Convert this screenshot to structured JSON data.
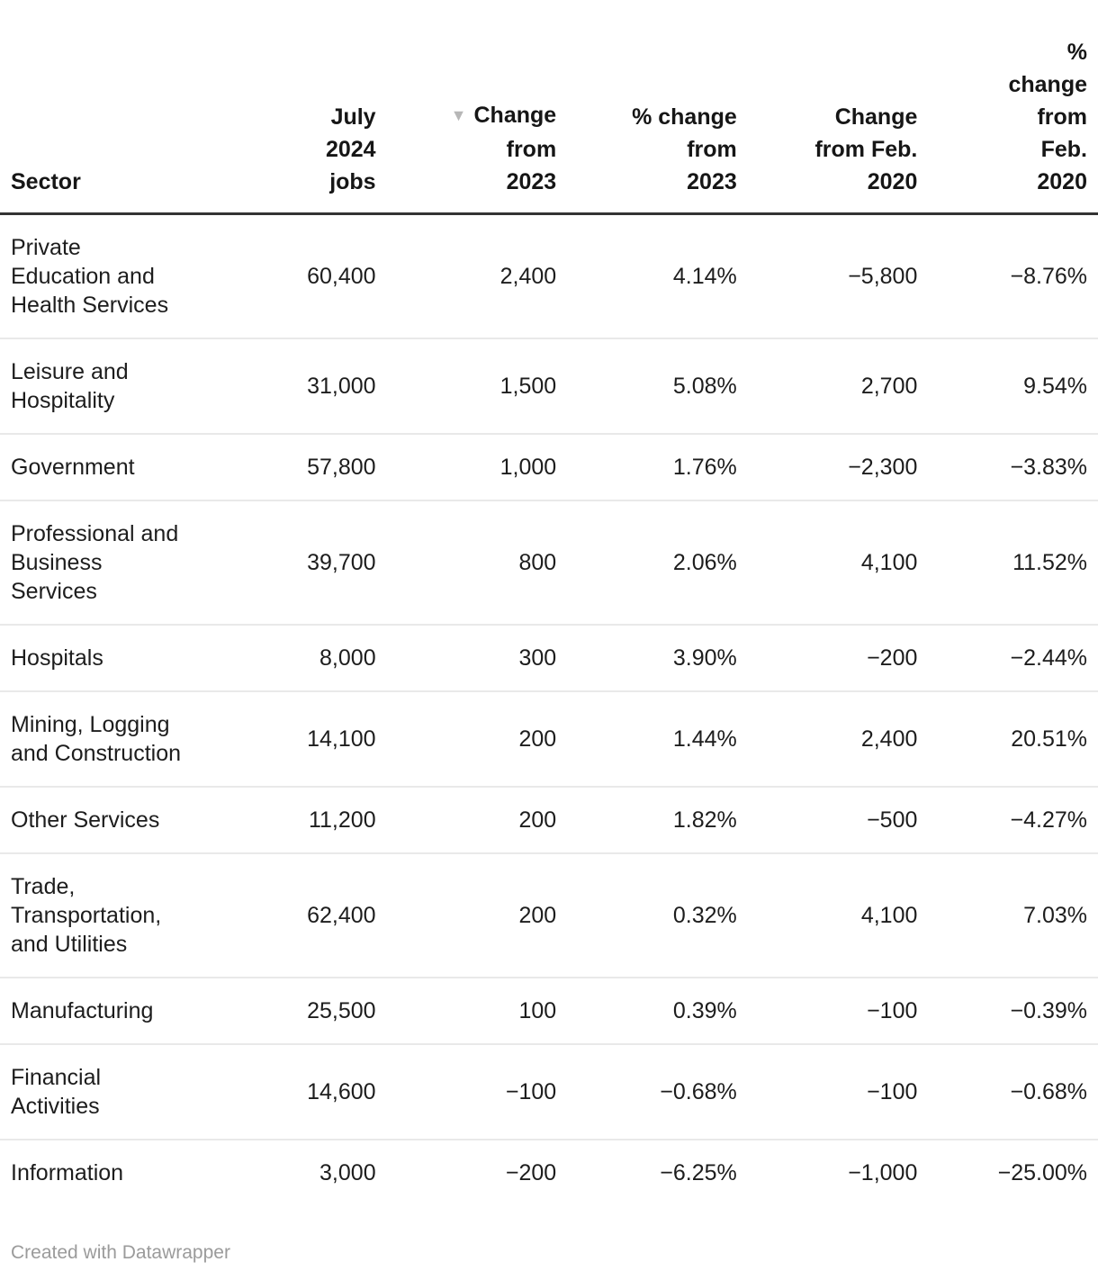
{
  "chart_data": {
    "type": "table",
    "title": "",
    "columns": [
      "Sector",
      "July 2024 jobs",
      "Change from 2023",
      "% change from 2023",
      "Change from Feb. 2020",
      "% change from Feb. 2020"
    ],
    "sort": {
      "column": "Change from 2023",
      "direction": "descending"
    },
    "rows": [
      {
        "sector": "Private Education and Health Services",
        "values": [
          "60,400",
          "2,400",
          "4.14%",
          "−5,800",
          "−8.76%"
        ]
      },
      {
        "sector": "Leisure and Hospitality",
        "values": [
          "31,000",
          "1,500",
          "5.08%",
          "2,700",
          "9.54%"
        ]
      },
      {
        "sector": "Government",
        "values": [
          "57,800",
          "1,000",
          "1.76%",
          "−2,300",
          "−3.83%"
        ]
      },
      {
        "sector": "Professional and Business Services",
        "values": [
          "39,700",
          "800",
          "2.06%",
          "4,100",
          "11.52%"
        ]
      },
      {
        "sector": "Hospitals",
        "values": [
          "8,000",
          "300",
          "3.90%",
          "−200",
          "−2.44%"
        ]
      },
      {
        "sector": "Mining, Logging and Construction",
        "values": [
          "14,100",
          "200",
          "1.44%",
          "2,400",
          "20.51%"
        ]
      },
      {
        "sector": "Other Services",
        "values": [
          "11,200",
          "200",
          "1.82%",
          "−500",
          "−4.27%"
        ]
      },
      {
        "sector": "Trade, Transportation, and Utilities",
        "values": [
          "62,400",
          "200",
          "0.32%",
          "4,100",
          "7.03%"
        ]
      },
      {
        "sector": "Manufacturing",
        "values": [
          "25,500",
          "100",
          "0.39%",
          "−100",
          "−0.39%"
        ]
      },
      {
        "sector": "Financial Activities",
        "values": [
          "14,600",
          "−100",
          "−0.68%",
          "−100",
          "−0.68%"
        ]
      },
      {
        "sector": "Information",
        "values": [
          "3,000",
          "−200",
          "−6.25%",
          "−1,000",
          "−25.00%"
        ]
      }
    ]
  },
  "header": {
    "column_lines": [
      [
        "Sector"
      ],
      [
        "July",
        "2024",
        "jobs"
      ],
      [
        "Change",
        "from",
        "2023"
      ],
      [
        "% change",
        "from",
        "2023"
      ],
      [
        "Change",
        "from Feb.",
        "2020"
      ],
      [
        "%",
        "change",
        "from",
        "Feb.",
        "2020"
      ]
    ],
    "sorted_column_index": 2,
    "sort_icon_glyph": "▼"
  },
  "display": {
    "sector_lines": [
      [
        "Private",
        "Education and",
        "Health Services"
      ],
      [
        "Leisure and",
        "Hospitality"
      ],
      [
        "Government"
      ],
      [
        "Professional and",
        "Business",
        "Services"
      ],
      [
        "Hospitals"
      ],
      [
        "Mining, Logging",
        "and Construction"
      ],
      [
        "Other Services"
      ],
      [
        "Trade,",
        "Transportation,",
        "and Utilities"
      ],
      [
        "Manufacturing"
      ],
      [
        "Financial",
        "Activities"
      ],
      [
        "Information"
      ]
    ]
  },
  "footer": {
    "attribution": "Created with Datawrapper"
  },
  "colors": {
    "background": "#ffffff",
    "body_text": "#1d1d1d",
    "header_text": "#161616",
    "header_rule": "#333333",
    "row_divider": "#e9e9e9",
    "sort_arrow": "#b7b7b7",
    "footer_text": "#9b9b9b"
  }
}
